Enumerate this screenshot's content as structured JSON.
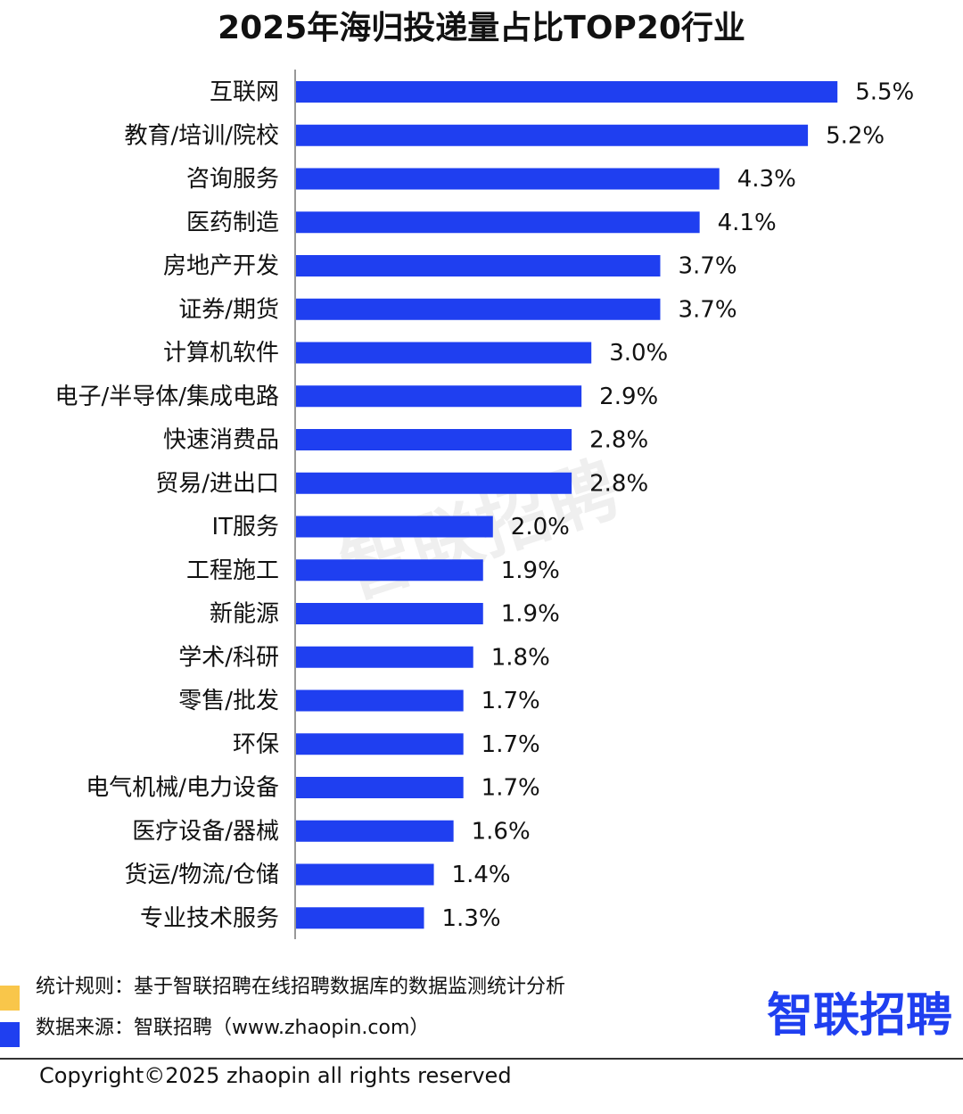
{
  "chart_data": {
    "type": "bar",
    "orientation": "horizontal",
    "title": "2025年海归投递量占比TOP20行业",
    "categories": [
      "互联网",
      "教育/培训/院校",
      "咨询服务",
      "医药制造",
      "房地产开发",
      "证券/期货",
      "计算机软件",
      "电子/半导体/集成电路",
      "快速消费品",
      "贸易/进出口",
      "IT服务",
      "工程施工",
      "新能源",
      "学术/科研",
      "零售/批发",
      "环保",
      "电气机械/电力设备",
      "医疗设备/器械",
      "货运/物流/仓储",
      "专业技术服务"
    ],
    "values": [
      5.5,
      5.2,
      4.3,
      4.1,
      3.7,
      3.7,
      3.0,
      2.9,
      2.8,
      2.8,
      2.0,
      1.9,
      1.9,
      1.8,
      1.7,
      1.7,
      1.7,
      1.6,
      1.4,
      1.3
    ],
    "value_labels": [
      "5.5%",
      "5.2%",
      "4.3%",
      "4.1%",
      "3.7%",
      "3.7%",
      "3.0%",
      "2.9%",
      "2.8%",
      "2.8%",
      "2.0%",
      "1.9%",
      "1.9%",
      "1.8%",
      "1.7%",
      "1.7%",
      "1.7%",
      "1.6%",
      "1.4%",
      "1.3%"
    ],
    "color": "#1f3ff0"
  },
  "watermark": "智联招聘",
  "notes": [
    "统计规则：基于智联招聘在线招聘数据库的数据监测统计分析",
    "数据来源：智联招聘（www.zhaopin.com）"
  ],
  "logo": "智联招聘",
  "copyright": "Copyright©2025 zhaopin all rights reserved"
}
